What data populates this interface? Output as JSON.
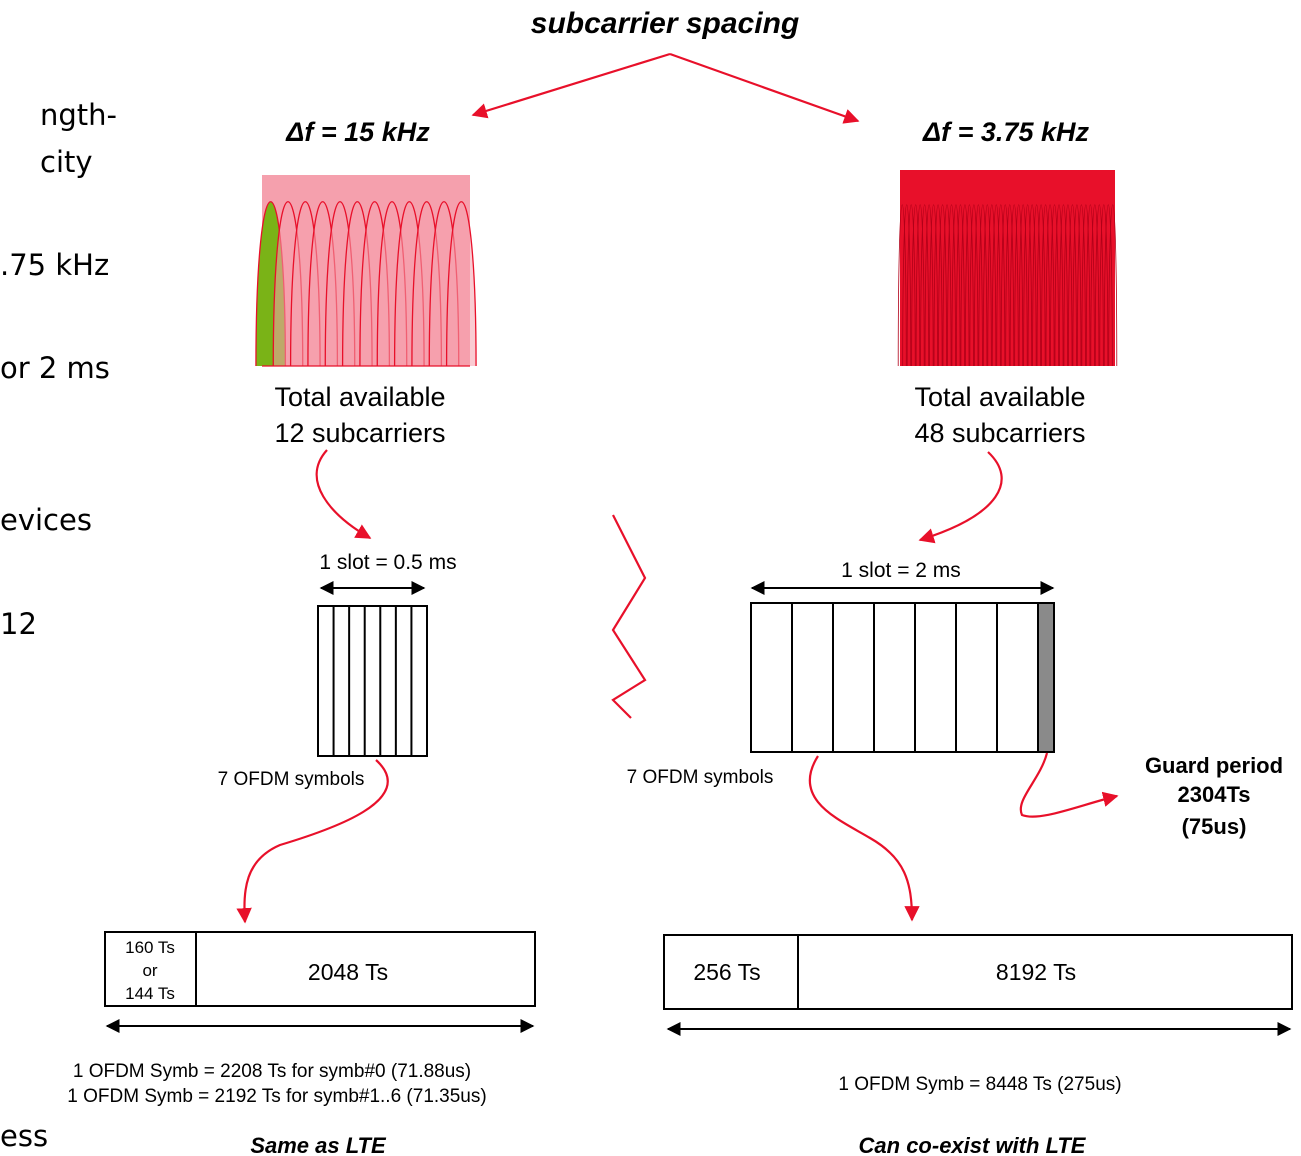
{
  "slide_left_text": {
    "line1": "ngth-",
    "line2": "city",
    "line3": ".75 kHz",
    "line4": "or 2 ms",
    "line5": "evices",
    "line6": "12",
    "line7": "ess"
  },
  "title": "subcarrier spacing",
  "left": {
    "delta": "Δf = 15 kHz",
    "subcarriers": 12,
    "available_line1": "Total available",
    "available_line2": "12 subcarriers",
    "slot_label": "1 slot = 0.5 ms",
    "symbols": 7,
    "symbols_label": "7 OFDM symbols",
    "cp_line1": "160 Ts",
    "cp_line2": "or",
    "cp_line3": "144 Ts",
    "body_label": "2048 Ts",
    "symb_line1": "1 OFDM Symb = 2208 Ts for symb#0 (71.88us)",
    "symb_line2": "1 OFDM Symb = 2192 Ts for symb#1..6 (71.35us)",
    "footer": "Same as LTE"
  },
  "right": {
    "delta": "Δf = 3.75 kHz",
    "subcarriers": 48,
    "available_line1": "Total available",
    "available_line2": "48 subcarriers",
    "slot_label": "1 slot = 2 ms",
    "symbols": 7,
    "symbols_label": "7 OFDM symbols",
    "guard_line1": "Guard period",
    "guard_line2": "2304Ts",
    "guard_line3": "(75us)",
    "cp_label": "256 Ts",
    "body_label": "8192 Ts",
    "symb_line": "1 OFDM Symb = 8448 Ts (275us)",
    "footer": "Can co-exist with LTE"
  },
  "colors": {
    "arrow": "#e8102a",
    "left_fill": "#f5a0ad",
    "left_stroke": "#e8102a",
    "highlight": "#7ab317",
    "right_fill": "#e8102a",
    "guard": "#8a8a8a"
  }
}
